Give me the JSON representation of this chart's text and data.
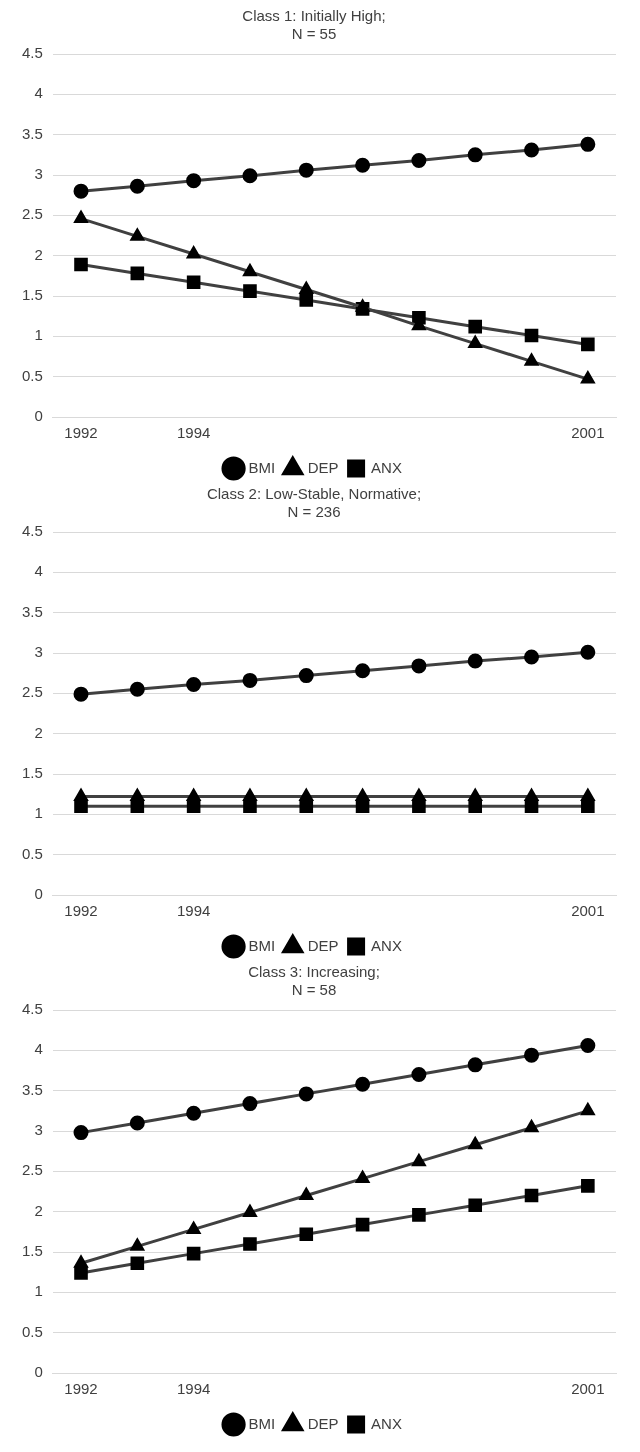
{
  "chart_data": [
    {
      "type": "line",
      "title": "Class 1: Initially High;\nN = 55",
      "categories": [
        "1992",
        null,
        "1994",
        null,
        null,
        null,
        null,
        null,
        null,
        "2001"
      ],
      "ylim": [
        0,
        4.5
      ],
      "yticks": [
        0,
        0.5,
        1,
        1.5,
        2,
        2.5,
        3,
        3.5,
        4,
        4.5
      ],
      "grid": "y",
      "legend": "bottom",
      "line_style": "solid",
      "series": [
        {
          "name": "BMI",
          "color": "#404040",
          "marker": "circle",
          "values": [
            2.8,
            2.86,
            2.93,
            2.99,
            3.06,
            3.12,
            3.18,
            3.25,
            3.31,
            3.38
          ]
        },
        {
          "name": "DEP",
          "color": "#404040",
          "marker": "triangle",
          "values": [
            2.46,
            2.24,
            2.02,
            1.8,
            1.58,
            1.36,
            1.13,
            0.91,
            0.69,
            0.47
          ]
        },
        {
          "name": "ANX",
          "color": "#404040",
          "marker": "square",
          "values": [
            1.89,
            1.78,
            1.67,
            1.56,
            1.45,
            1.34,
            1.23,
            1.12,
            1.01,
            0.9
          ]
        }
      ]
    },
    {
      "type": "line",
      "title": "Class 2: Low-Stable, Normative;\nN = 236",
      "categories": [
        "1992",
        null,
        "1994",
        null,
        null,
        null,
        null,
        null,
        null,
        "2001"
      ],
      "ylim": [
        0,
        4.5
      ],
      "yticks": [
        0,
        0.5,
        1,
        1.5,
        2,
        2.5,
        3,
        3.5,
        4,
        4.5
      ],
      "grid": "y",
      "legend": "bottom",
      "line_style": "solid",
      "series": [
        {
          "name": "BMI",
          "color": "#404040",
          "marker": "circle",
          "values": [
            2.49,
            2.55,
            2.61,
            2.66,
            2.72,
            2.78,
            2.84,
            2.9,
            2.95,
            3.01
          ]
        },
        {
          "name": "DEP",
          "color": "#404040",
          "marker": "triangle",
          "values": [
            1.22,
            1.22,
            1.22,
            1.22,
            1.22,
            1.22,
            1.22,
            1.22,
            1.22,
            1.22
          ]
        },
        {
          "name": "ANX",
          "color": "#404040",
          "marker": "square",
          "values": [
            1.1,
            1.1,
            1.1,
            1.1,
            1.1,
            1.1,
            1.1,
            1.1,
            1.1,
            1.1
          ]
        }
      ]
    },
    {
      "type": "line",
      "title": "Class 3: Increasing;\nN = 58",
      "categories": [
        "1992",
        null,
        "1994",
        null,
        null,
        null,
        null,
        null,
        null,
        "2001"
      ],
      "ylim": [
        0,
        4.5
      ],
      "yticks": [
        0,
        0.5,
        1,
        1.5,
        2,
        2.5,
        3,
        3.5,
        4,
        4.5
      ],
      "grid": "y",
      "legend": "bottom",
      "line_style": "solid",
      "series": [
        {
          "name": "BMI",
          "color": "#404040",
          "marker": "circle",
          "values": [
            2.98,
            3.1,
            3.22,
            3.34,
            3.46,
            3.58,
            3.7,
            3.82,
            3.94,
            4.06
          ]
        },
        {
          "name": "DEP",
          "color": "#404040",
          "marker": "triangle",
          "values": [
            1.36,
            1.57,
            1.78,
            1.99,
            2.2,
            2.41,
            2.62,
            2.83,
            3.04,
            3.25
          ]
        },
        {
          "name": "ANX",
          "color": "#404040",
          "marker": "square",
          "values": [
            1.24,
            1.36,
            1.48,
            1.6,
            1.72,
            1.84,
            1.96,
            2.08,
            2.2,
            2.32
          ]
        }
      ]
    }
  ]
}
